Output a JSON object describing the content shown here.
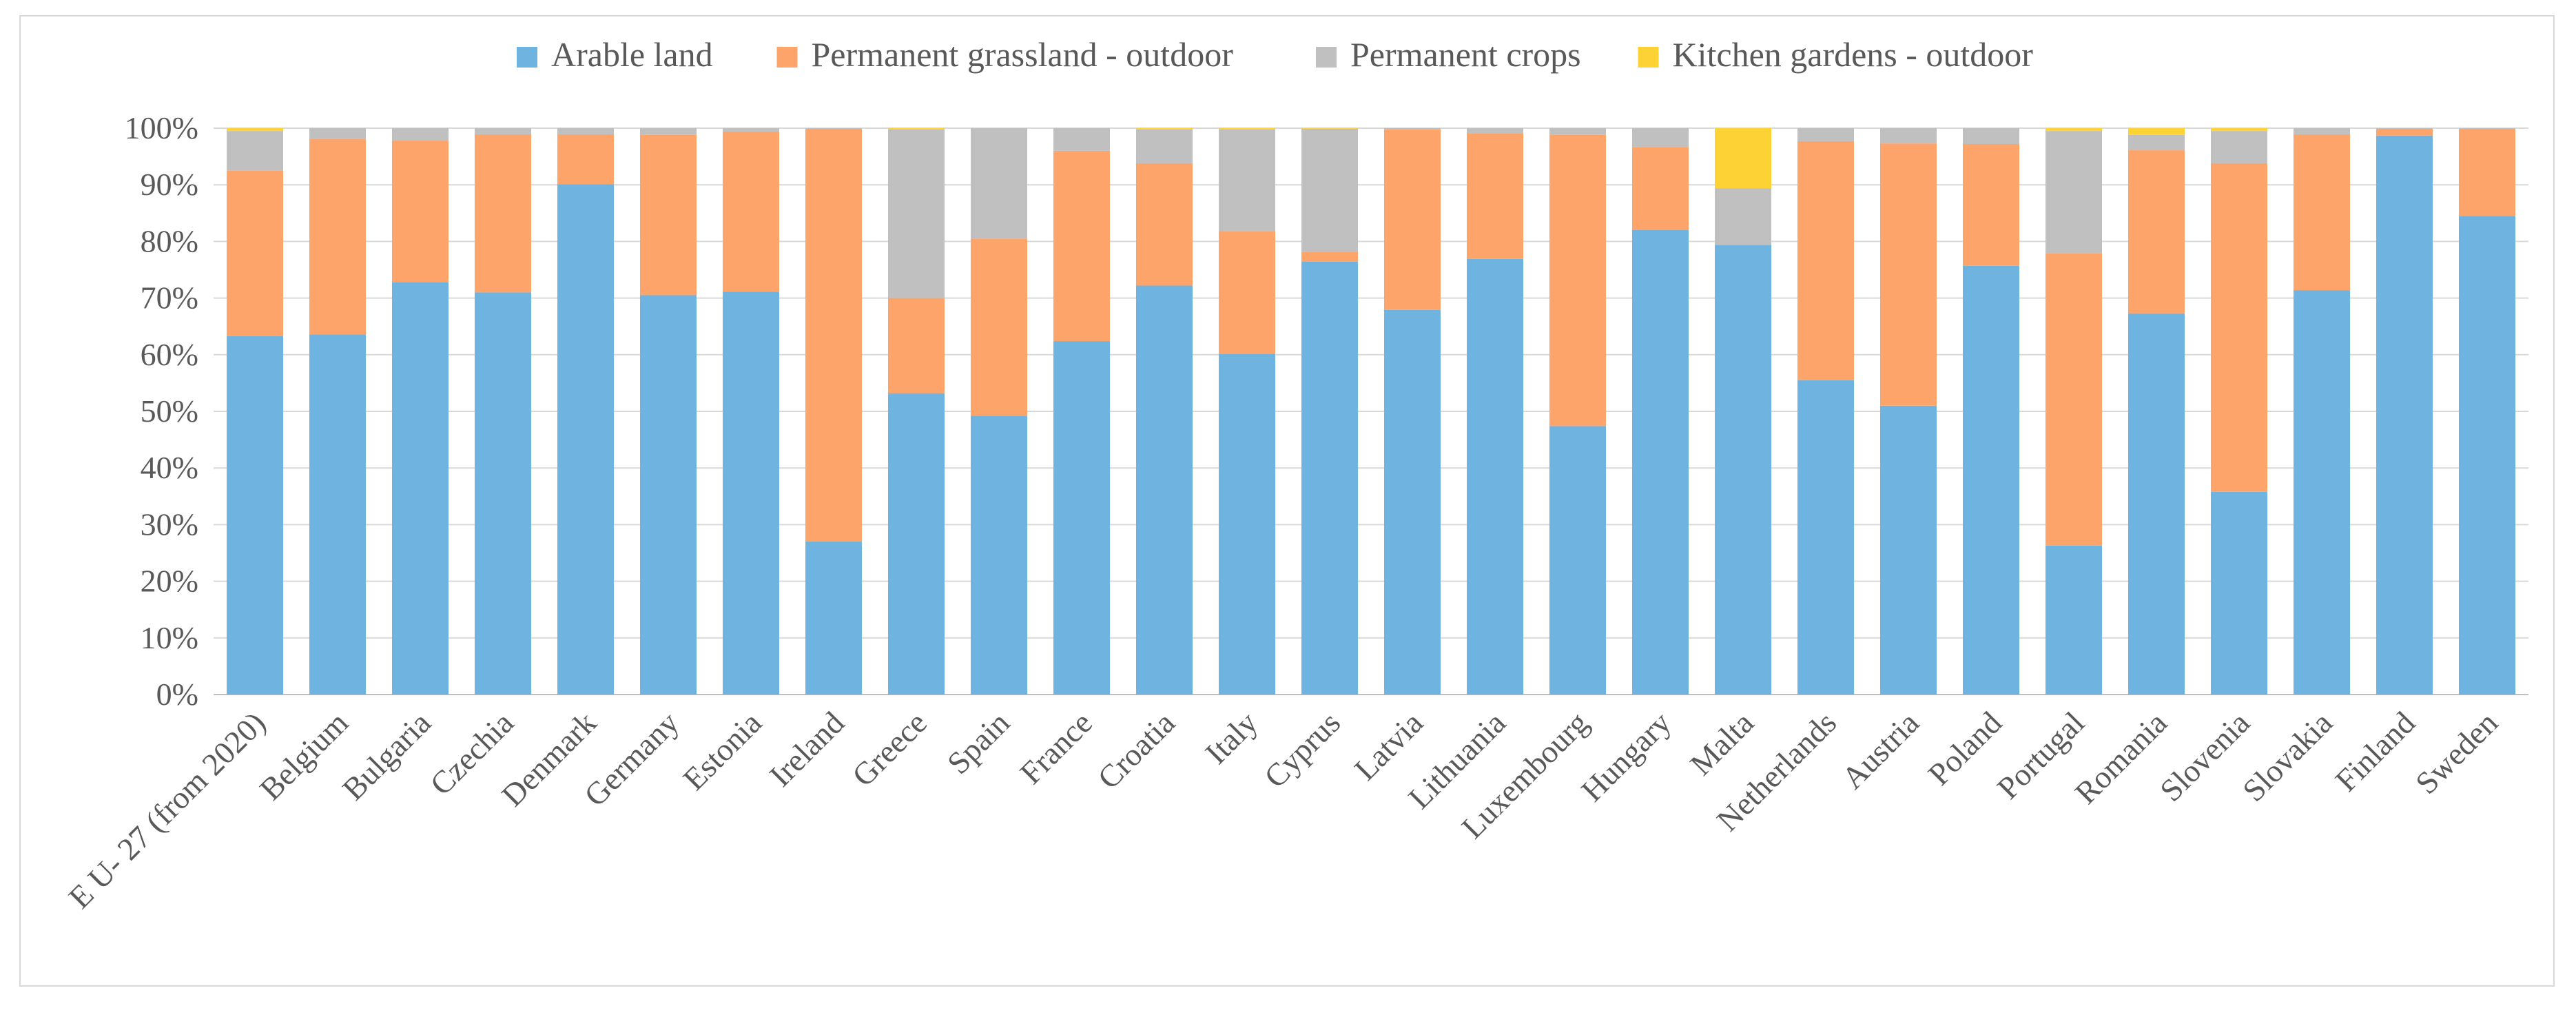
{
  "chart_data": {
    "type": "bar",
    "stacked": true,
    "title": "",
    "xlabel": "",
    "ylabel": "",
    "ylim": [
      0,
      100
    ],
    "ytick_labels": [
      "0%",
      "10%",
      "20%",
      "30%",
      "40%",
      "50%",
      "60%",
      "70%",
      "80%",
      "90%",
      "100%"
    ],
    "legend_position": "top",
    "categories": [
      "E U- 27 (from 2020)",
      "Belgium",
      "Bulgaria",
      "Czechia",
      "Denmark",
      "Germany",
      "Estonia",
      "Ireland",
      "Greece",
      "Spain",
      "France",
      "Croatia",
      "Italy",
      "Cyprus",
      "Latvia",
      "Lithuania",
      "Luxembourg",
      "Hungary",
      "Malta",
      "Netherlands",
      "Austria",
      "Poland",
      "Portugal",
      "Romania",
      "Slovenia",
      "Slovakia",
      "Finland",
      "Sweden"
    ],
    "series": [
      {
        "name": "Arable land",
        "color": "#6fb3e0",
        "values": [
          63.3,
          63.6,
          72.8,
          71.0,
          90.1,
          70.5,
          71.1,
          27.0,
          53.2,
          49.2,
          62.4,
          72.2,
          60.1,
          76.4,
          67.9,
          76.9,
          47.4,
          82.0,
          79.4,
          55.5,
          51.0,
          75.7,
          26.3,
          67.3,
          35.8,
          71.4,
          98.7,
          84.5
        ]
      },
      {
        "name": "Permanent grassland - outdoor",
        "color": "#fda46b",
        "values": [
          29.2,
          34.5,
          25.0,
          27.9,
          8.8,
          28.3,
          28.3,
          72.9,
          16.8,
          31.3,
          33.6,
          21.6,
          21.7,
          1.8,
          31.9,
          22.2,
          51.4,
          14.6,
          0.0,
          42.2,
          46.3,
          21.5,
          51.6,
          28.8,
          58.0,
          27.5,
          1.2,
          15.4
        ]
      },
      {
        "name": "Permanent crops",
        "color": "#c0c0c0",
        "values": [
          7.0,
          1.9,
          2.2,
          1.1,
          1.1,
          1.2,
          0.6,
          0.1,
          29.8,
          19.5,
          4.0,
          6.0,
          18.0,
          21.7,
          0.2,
          0.9,
          1.2,
          3.4,
          10.0,
          2.3,
          2.7,
          2.8,
          21.6,
          2.7,
          5.7,
          1.1,
          0.1,
          0.1
        ]
      },
      {
        "name": "Kitchen gardens - outdoor",
        "color": "#fdd235",
        "values": [
          0.5,
          0.0,
          0.0,
          0.0,
          0.0,
          0.0,
          0.0,
          0.0,
          0.2,
          0.0,
          0.0,
          0.2,
          0.2,
          0.1,
          0.0,
          0.0,
          0.0,
          0.0,
          10.6,
          0.0,
          0.0,
          0.0,
          0.5,
          1.2,
          0.5,
          0.0,
          0.0,
          0.0
        ]
      }
    ]
  }
}
